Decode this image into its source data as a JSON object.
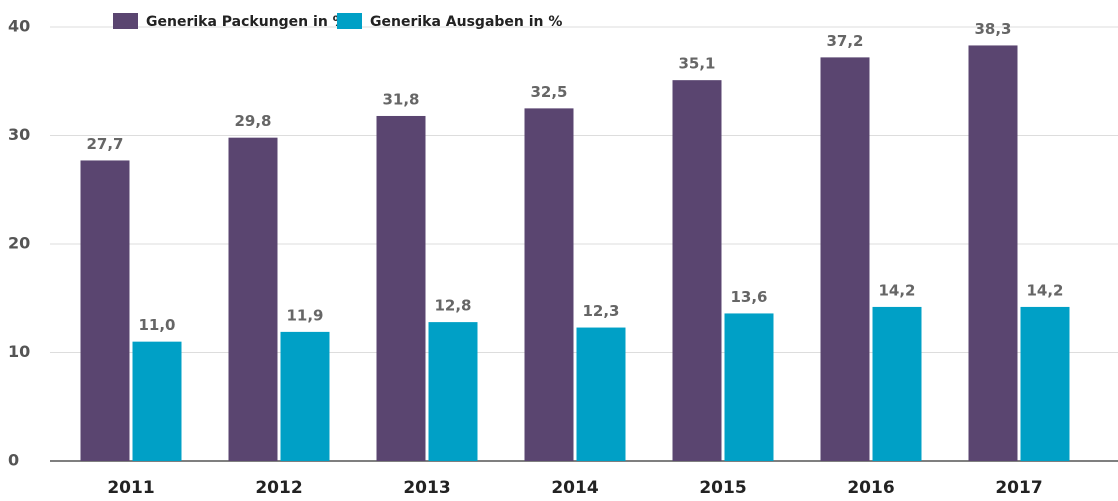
{
  "chart_data": {
    "type": "bar",
    "categories": [
      "2011",
      "2012",
      "2013",
      "2014",
      "2015",
      "2016",
      "2017"
    ],
    "series": [
      {
        "name": "Generika Packungen in %",
        "color": "#5a4570",
        "values": [
          27.7,
          29.8,
          31.8,
          32.5,
          35.1,
          37.2,
          38.3
        ],
        "value_labels": [
          "27,7",
          "29,8",
          "31,8",
          "32,5",
          "35,1",
          "37,2",
          "38,3"
        ]
      },
      {
        "name": "Generika Ausgaben in %",
        "color": "#00a0c6",
        "values": [
          11.0,
          11.9,
          12.8,
          12.3,
          13.6,
          14.2,
          14.2
        ],
        "value_labels": [
          "11,0",
          "11,9",
          "12,8",
          "12,3",
          "13,6",
          "14,2",
          "14,2"
        ]
      }
    ],
    "ylim": [
      0,
      40
    ],
    "yticks": [
      0,
      10,
      20,
      30,
      40
    ],
    "grid": true,
    "legend": "top"
  }
}
